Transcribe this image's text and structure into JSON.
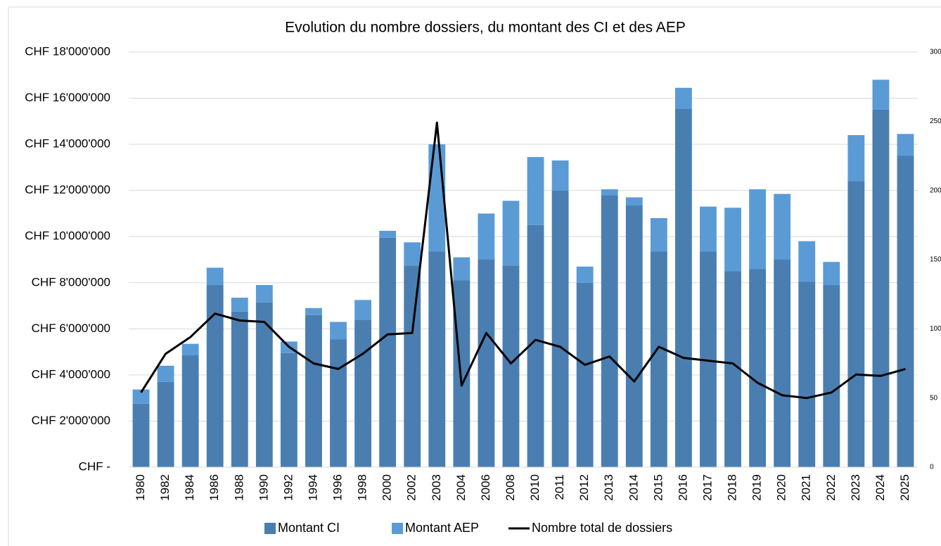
{
  "chart_data": {
    "type": "bar",
    "title": "Evolution du nombre dossiers, du montant des CI et des AEP",
    "categories": [
      "1980",
      "1982",
      "1984",
      "1986",
      "1988",
      "1990",
      "1992",
      "1994",
      "1996",
      "1998",
      "2000",
      "2002",
      "2003",
      "2004",
      "2006",
      "2008",
      "2010",
      "2011",
      "2012",
      "2013",
      "2014",
      "2015",
      "2016",
      "2017",
      "2018",
      "2019",
      "2020",
      "2021",
      "2022",
      "2023",
      "2024",
      "2025"
    ],
    "stacked": true,
    "series": [
      {
        "name": "Montant CI",
        "type": "bar",
        "color": "#4a7eb1",
        "values": [
          2750000,
          3700000,
          4850000,
          7900000,
          6750000,
          7150000,
          4950000,
          6600000,
          5550000,
          6400000,
          9950000,
          8750000,
          9350000,
          8100000,
          9000000,
          8750000,
          10500000,
          12000000,
          8000000,
          11800000,
          11350000,
          9350000,
          15550000,
          9350000,
          8500000,
          8600000,
          9000000,
          8050000,
          7900000,
          12400000,
          15500000,
          13500000
        ]
      },
      {
        "name": "Montant AEP",
        "type": "bar",
        "color": "#5b9bd5",
        "values": [
          620000,
          700000,
          500000,
          750000,
          600000,
          750000,
          500000,
          300000,
          750000,
          850000,
          300000,
          1000000,
          4650000,
          1000000,
          2000000,
          2800000,
          2950000,
          1300000,
          700000,
          250000,
          350000,
          1450000,
          900000,
          1950000,
          2750000,
          3450000,
          2850000,
          1750000,
          1000000,
          2000000,
          1300000,
          950000
        ]
      },
      {
        "name": "Nombre total de dossiers",
        "type": "line",
        "axis": "y2",
        "color": "#000000",
        "values": [
          54,
          82,
          94,
          111,
          106,
          105,
          87,
          75,
          71,
          82,
          96,
          97,
          249,
          59,
          97,
          75,
          92,
          87,
          74,
          80,
          62,
          87,
          79,
          77,
          75,
          61,
          52,
          50,
          54,
          67,
          66,
          71
        ]
      }
    ],
    "ylim": [
      0,
      18000000
    ],
    "yticks": [
      {
        "value": 0,
        "label": "CHF -"
      },
      {
        "value": 2000000,
        "label": "CHF 2'000'000"
      },
      {
        "value": 4000000,
        "label": "CHF 4'000'000"
      },
      {
        "value": 6000000,
        "label": "CHF 6'000'000"
      },
      {
        "value": 8000000,
        "label": "CHF 8'000'000"
      },
      {
        "value": 10000000,
        "label": "CHF 10'000'000"
      },
      {
        "value": 12000000,
        "label": "CHF 12'000'000"
      },
      {
        "value": 14000000,
        "label": "CHF 14'000'000"
      },
      {
        "value": 16000000,
        "label": "CHF 16'000'000"
      },
      {
        "value": 18000000,
        "label": "CHF 18'000'000"
      }
    ],
    "y2lim": [
      0,
      300
    ],
    "y2ticks": [
      0,
      50,
      100,
      150,
      200,
      250,
      300
    ],
    "grid": true,
    "legend": "bottom"
  }
}
